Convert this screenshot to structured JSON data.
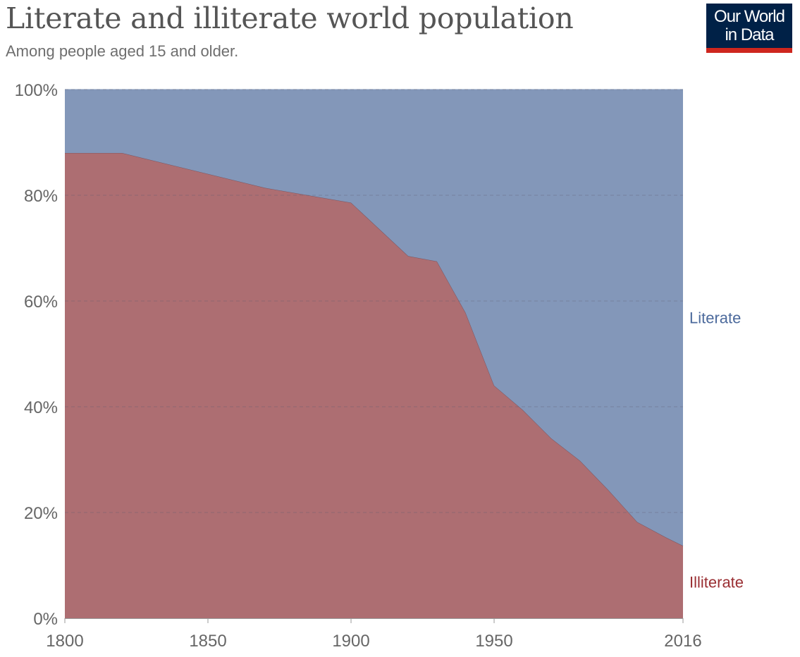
{
  "header": {
    "title": "Literate and illiterate world population",
    "subtitle": "Among people aged 15 and older."
  },
  "logo": {
    "line1": "Our World",
    "line2": "in Data",
    "bg_color": "#002147",
    "accent_color": "#ce261e"
  },
  "chart_data": {
    "type": "area",
    "stacked": true,
    "title": "Literate and illiterate world population",
    "subtitle": "Among people aged 15 and older.",
    "xlabel": "",
    "ylabel": "",
    "xlim": [
      1800,
      2016
    ],
    "ylim": [
      0,
      100
    ],
    "x_ticks": [
      {
        "value": 1800,
        "label": "1800"
      },
      {
        "value": 1850,
        "label": "1850"
      },
      {
        "value": 1900,
        "label": "1900"
      },
      {
        "value": 1950,
        "label": "1950"
      },
      {
        "value": 2016,
        "label": "2016"
      }
    ],
    "y_ticks": [
      {
        "value": 0,
        "label": "0%"
      },
      {
        "value": 20,
        "label": "20%"
      },
      {
        "value": 40,
        "label": "40%"
      },
      {
        "value": 60,
        "label": "60%"
      },
      {
        "value": 80,
        "label": "80%"
      },
      {
        "value": 100,
        "label": "100%"
      }
    ],
    "grid": "horizontal dashed",
    "legend": "inline labels at right",
    "x": [
      1800,
      1820,
      1870,
      1900,
      1920,
      1930,
      1940,
      1950,
      1960,
      1970,
      1980,
      1990,
      2000,
      2010,
      2016
    ],
    "series": [
      {
        "name": "Illiterate",
        "color": "#ad6e72",
        "label_color": "#9a2f33",
        "values": [
          88,
          88,
          81.4,
          78.6,
          68.5,
          67.5,
          57.8,
          44,
          39.4,
          34,
          29.8,
          24.2,
          18.2,
          15.3,
          13.7
        ]
      },
      {
        "name": "Literate",
        "color": "#8397b9",
        "label_color": "#4c6a9c",
        "values": [
          12,
          12,
          18.6,
          21.4,
          31.5,
          32.5,
          42.2,
          56,
          60.6,
          66,
          70.2,
          75.8,
          81.8,
          84.7,
          86.3
        ]
      }
    ]
  }
}
